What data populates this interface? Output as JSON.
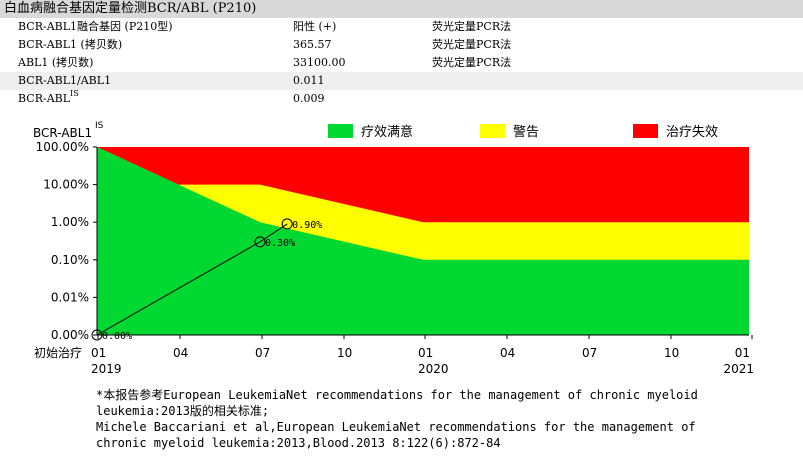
{
  "header": {
    "title": "白血病融合基因定量检测BCR/ABL (P210)"
  },
  "table": {
    "rows": [
      {
        "name": "BCR-ABL1融合基因 (P210型)",
        "value": "阳性 (+)",
        "method": "荧光定量PCR法"
      },
      {
        "name": "BCR-ABL1 (拷贝数)",
        "value": "365.57",
        "method": "荧光定量PCR法"
      },
      {
        "name": "ABL1 (拷贝数)",
        "value": "33100.00",
        "method": "荧光定量PCR法"
      },
      {
        "name": "BCR-ABL1/ABL1",
        "value": "0.011",
        "method": ""
      },
      {
        "name": "BCR-ABL",
        "name_sup": "IS",
        "value": "0.009",
        "method": ""
      }
    ]
  },
  "chart_data": {
    "type": "area",
    "ylabel": "BCR-ABL1",
    "ylabel_sup": "IS",
    "y_scale": "log",
    "y_ticks": [
      "100.00%",
      "10.00%",
      "1.00%",
      "0.10%",
      "0.01%",
      "0.00%"
    ],
    "x_ticks": [
      {
        "month": "初始治疗",
        "year": ""
      },
      {
        "month": "01",
        "year": "2019"
      },
      {
        "month": "04",
        "year": ""
      },
      {
        "month": "07",
        "year": ""
      },
      {
        "month": "10",
        "year": ""
      },
      {
        "month": "01",
        "year": "2020"
      },
      {
        "month": "04",
        "year": ""
      },
      {
        "month": "07",
        "year": ""
      },
      {
        "month": "10",
        "year": ""
      },
      {
        "month": "01",
        "year": "2021"
      }
    ],
    "legend": [
      {
        "name": "疗效满意",
        "color": "#00d832"
      },
      {
        "name": "警告",
        "color": "#ffff00"
      },
      {
        "name": "治疗失效",
        "color": "#ff0000"
      }
    ],
    "legend_position": "top",
    "zones": {
      "months": [
        0,
        3,
        6,
        12,
        24
      ],
      "optimal_upper_pct": [
        100,
        10,
        1,
        0.1,
        0.1
      ],
      "warning_upper_pct": [
        100,
        10,
        10,
        1,
        1
      ]
    },
    "points": [
      {
        "month": 0,
        "label": "0.00%"
      },
      {
        "month": 6,
        "value_pct": 0.3,
        "label": "0.30%"
      },
      {
        "month": 7,
        "value_pct": 0.9,
        "label": "0.90%"
      }
    ]
  },
  "notes": [
    "*本报告参考European LeukemiaNet recommendations for the management of chronic myeloid",
    "leukemia:2013版的相关标准;",
    "Michele Baccariani et al,European LeukemiaNet recommendations for the management of",
    "chronic myeloid leukemia:2013,Blood.2013 8:122(6):872-84"
  ]
}
